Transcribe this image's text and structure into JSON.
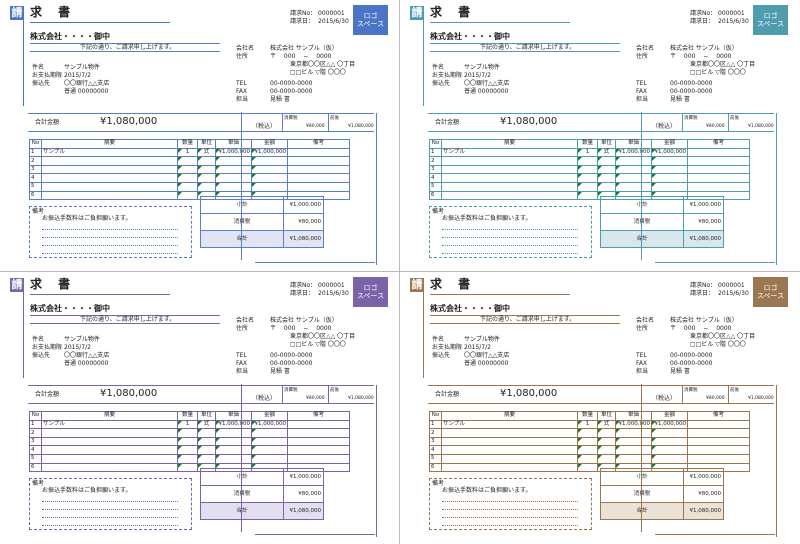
{
  "invoice": {
    "badge": "請",
    "title": "求 書",
    "logo_line1": "ロゴ",
    "logo_line2": "スペース",
    "invoice_no_label": "請求No：",
    "invoice_no": "0000001",
    "invoice_date_label": "請求日：",
    "invoice_date": "2015/6/30",
    "customer": "株式会社・・・・御中",
    "greeting": "下記の通り、ご請求申し上げます。",
    "company_label": "会社名",
    "company": "株式会社 サンプル（仮）",
    "address_label": "住所",
    "postal": "〒　 000 　−　 0000",
    "address1": "東京都〇〇区△△ 〇丁目",
    "address2": "□□ビル ▽階 〇〇〇",
    "subject_label": "件名",
    "subject": "サンプル物件",
    "due_label": "お支払期限",
    "due": "2015/7/2",
    "bank_label": "振込先",
    "bank": "〇〇銀行△△支店",
    "account": "普通 00000000",
    "tel_label": "TEL",
    "tel": "00-0000-0000",
    "fax_label": "FAX",
    "fax": "00-0000-0000",
    "person_label": "担当",
    "person": "見積 書",
    "total_label": "合計金額",
    "total": "¥1,080,000",
    "tax_incl": "（税込）",
    "tax_excl_label": "消費税",
    "tax_excl_value": "¥80,000",
    "shipping_label": "前後",
    "shipping_value": "¥1,080,000",
    "headers": [
      "No",
      "摘要",
      "数量",
      "単位",
      "単価",
      "金額",
      "備考"
    ],
    "rows": [
      [
        "1",
        "サンプル",
        "1",
        "式",
        "¥1,000,000",
        "¥1,000,000",
        ""
      ],
      [
        "2",
        "",
        "",
        "",
        "",
        "",
        ""
      ],
      [
        "3",
        "",
        "",
        "",
        "",
        "",
        ""
      ],
      [
        "4",
        "",
        "",
        "",
        "",
        "",
        ""
      ],
      [
        "5",
        "",
        "",
        "",
        "",
        "",
        ""
      ],
      [
        "6",
        "",
        "",
        "",
        "",
        "",
        ""
      ]
    ],
    "remarks_label": "備考",
    "remarks_text": "お振込手数料はご負担願います。",
    "subtotal_label": "小計",
    "subtotal": "¥1,000,000",
    "tax_label": "消費税",
    "tax": "¥80,000",
    "grand_label": "合計",
    "grand": "¥1,080,000"
  },
  "variants": [
    {
      "name": "blue",
      "accent": "#4a74c8",
      "light": "#e2e6f4",
      "line": "#5a7ec8"
    },
    {
      "name": "teal",
      "accent": "#4e9cae",
      "light": "#d8e7ec",
      "line": "#4e9cae"
    },
    {
      "name": "purple",
      "accent": "#7b63a8",
      "light": "#e3dff0",
      "line": "#7b63a8"
    },
    {
      "name": "brown",
      "accent": "#9a7652",
      "light": "#ece2d6",
      "line": "#9a7652"
    }
  ]
}
